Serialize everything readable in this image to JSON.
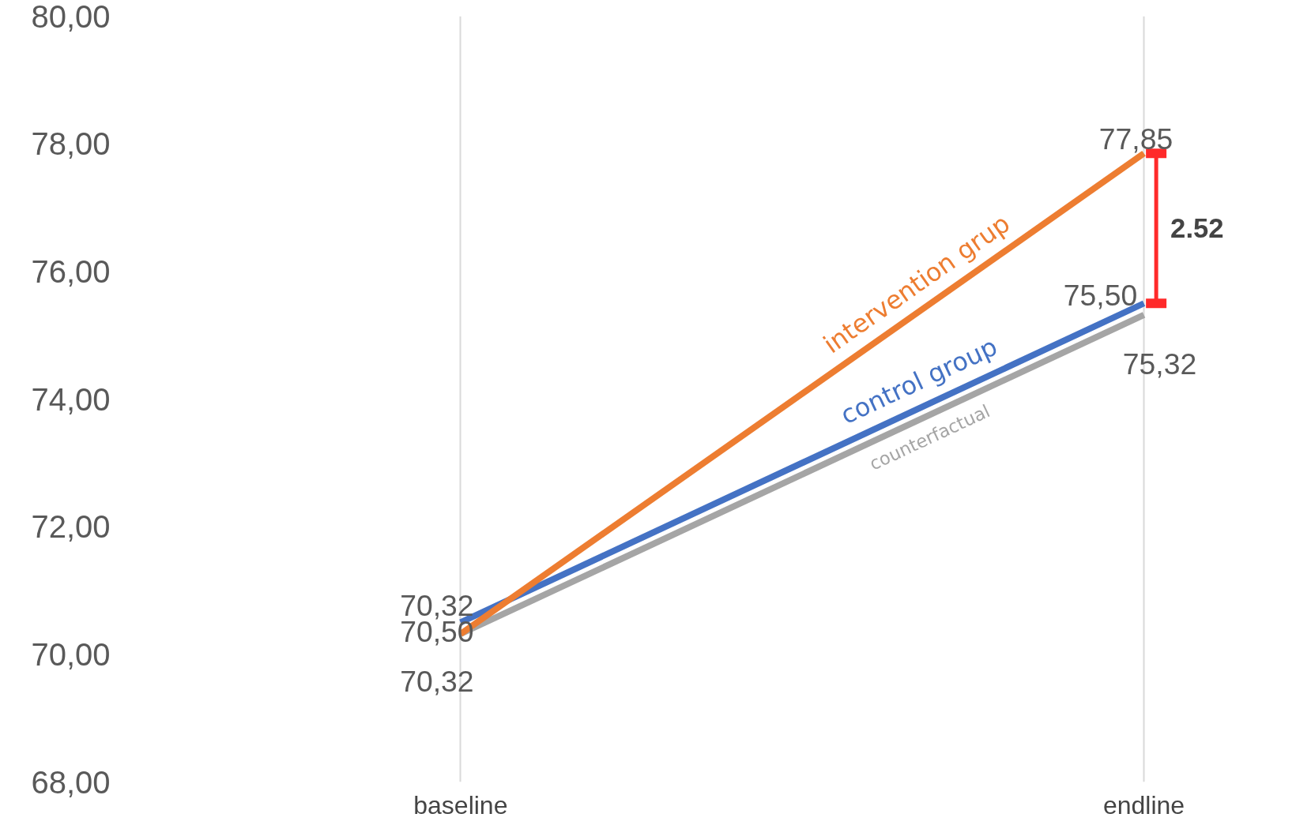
{
  "chart_data": {
    "type": "line",
    "categories": [
      "baseline",
      "endline"
    ],
    "series": [
      {
        "name": "counterfactual",
        "color": "#a5a5a5",
        "values": [
          70.32,
          75.32
        ],
        "value_labels": [
          "70,32",
          "75,32"
        ]
      },
      {
        "name": "control group",
        "color": "#4472c4",
        "values": [
          70.5,
          75.5
        ],
        "value_labels": [
          "70,50",
          "75,50"
        ]
      },
      {
        "name": "intervention grup",
        "color": "#ed7d31",
        "values": [
          70.32,
          77.85
        ],
        "value_labels": [
          "70,32",
          "77,85"
        ]
      }
    ],
    "ylim": [
      68,
      80
    ],
    "yticks": [
      {
        "value": 68,
        "label": "68,00"
      },
      {
        "value": 70,
        "label": "70,00"
      },
      {
        "value": 72,
        "label": "72,00"
      },
      {
        "value": 74,
        "label": "74,00"
      },
      {
        "value": 76,
        "label": "76,00"
      },
      {
        "value": 78,
        "label": "78,00"
      },
      {
        "value": 80,
        "label": "80,00"
      }
    ],
    "grid": "x",
    "marker": "none",
    "line_style": "solid",
    "annotations": [
      "2.52"
    ]
  }
}
